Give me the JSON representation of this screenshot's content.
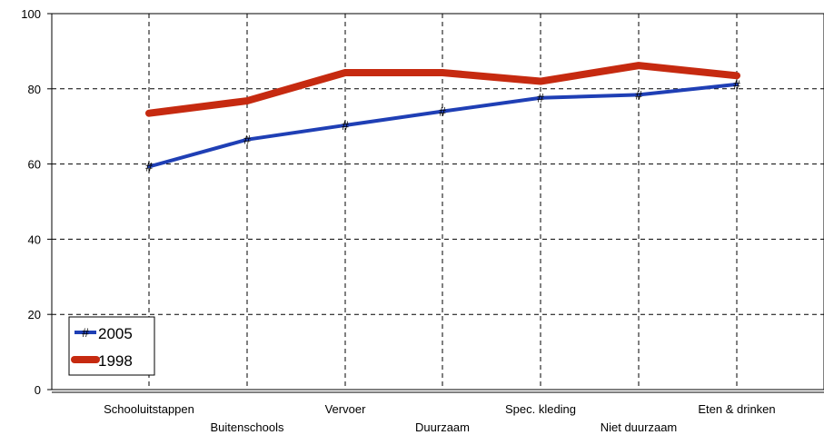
{
  "chart_data": {
    "type": "line",
    "title": "",
    "xlabel": "",
    "ylabel": "",
    "ylim": [
      0,
      100
    ],
    "yticks": [
      0,
      20,
      40,
      60,
      80,
      100
    ],
    "grid": true,
    "legend_position": "bottom-left",
    "categories": [
      "Schooluitstappen",
      "Buitenschools",
      "Vervoer",
      "Duurzaam",
      "Spec. kleding",
      "Niet duurzaam",
      "Eten & drinken"
    ],
    "series": [
      {
        "name": "2005",
        "color": "#1f3fb5",
        "marker": "#",
        "values": [
          59.3,
          66.5,
          70.3,
          74.0,
          77.6,
          78.4,
          81.2
        ]
      },
      {
        "name": "1998",
        "color": "#c62a10",
        "marker": "none",
        "values": [
          73.5,
          76.8,
          84.3,
          84.3,
          82.0,
          86.2,
          83.5
        ]
      }
    ]
  }
}
